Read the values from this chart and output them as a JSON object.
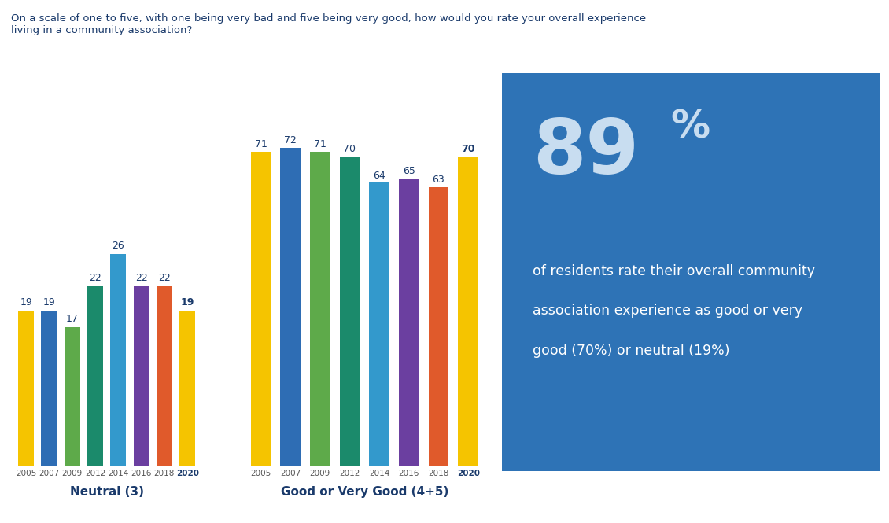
{
  "title": "On a scale of one to five, with one being very bad and five being very good, how would you rate your overall experience\nliving in a community association?",
  "title_color": "#1a3a6b",
  "years": [
    "2005",
    "2007",
    "2009",
    "2012",
    "2014",
    "2016",
    "2018",
    "2020"
  ],
  "neutral_values": [
    19,
    19,
    17,
    22,
    26,
    22,
    22,
    19
  ],
  "good_values": [
    71,
    72,
    71,
    70,
    64,
    65,
    63,
    70
  ],
  "bar_colors": [
    "#F5C400",
    "#2E6DB4",
    "#5EAA4A",
    "#1B8A6B",
    "#3399CC",
    "#6B3FA0",
    "#E05A2B",
    "#F5C400"
  ],
  "neutral_label": "Neutral (3)",
  "good_label": "Good or Very Good (4+5)",
  "label_color": "#1a3a6b",
  "value_label_color": "#1a3a6b",
  "box_color": "#2E73B6",
  "big_pct_main": "89",
  "big_pct_sup": "%",
  "big_pct_color": "#c8ddf0",
  "box_text_lines": [
    "of residents rate their overall community",
    "association experience as good or very",
    "good (70%) or neutral (19%)"
  ],
  "box_text_color": "#ffffff"
}
